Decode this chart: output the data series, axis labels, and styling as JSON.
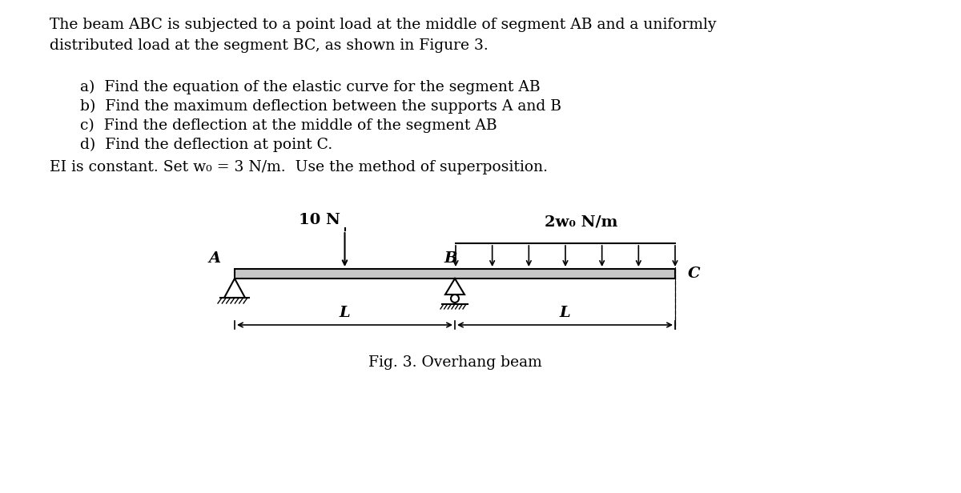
{
  "title_line1": "The beam ABC is subjected to a point load at the middle of segment AB and a uniformly",
  "title_line2": "distributed load at the segment BC, as shown in Figure 3.",
  "items": [
    "a)  Find the equation of the elastic curve for the segment AB",
    "b)  Find the maximum deflection between the supports A and B",
    "c)  Find the deflection at the middle of the segment AB",
    "d)  Find the deflection at point C."
  ],
  "ei_text": "EI is constant. Set w₀ = 3 N/m.  Use the method of superposition.",
  "fig_caption": "Fig. 3. Overhang beam",
  "load_10N_label": "10 N",
  "load_dist_label": "2w₀ N/m",
  "label_A": "A",
  "label_B": "B",
  "label_C": "C",
  "label_L1": "L",
  "label_L2": "L",
  "beam_color": "#c8c8c8",
  "beam_edge_color": "#000000",
  "text_color": "#000000",
  "background_color": "#ffffff",
  "title_fontsize": 13.5,
  "body_fontsize": 13.5,
  "diagram_fontsize": 14
}
